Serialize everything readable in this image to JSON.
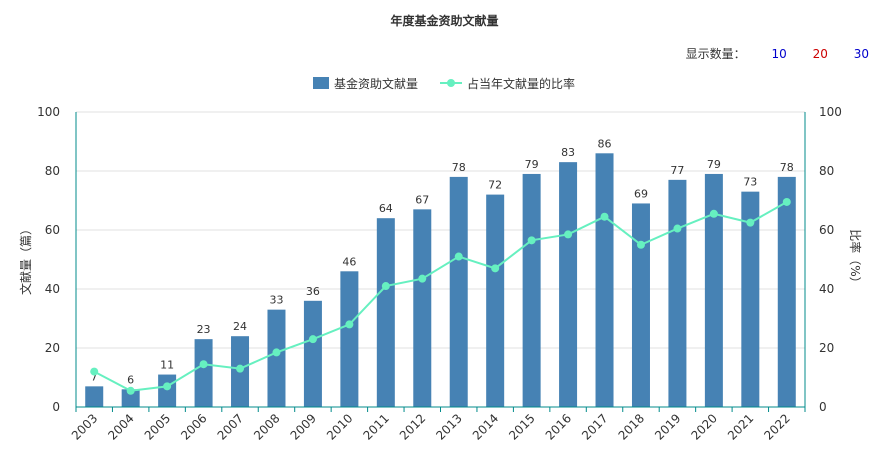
{
  "title": "年度基金资助文献量",
  "count_selector": {
    "label": "显示数量：",
    "options": [
      {
        "label": "10",
        "color": "#0000cc"
      },
      {
        "label": "20",
        "color": "#cc0000"
      },
      {
        "label": "30",
        "color": "#0000cc"
      }
    ]
  },
  "colors": {
    "bar": "#4682b4",
    "line": "#66f0c0",
    "axis": "#008b8b",
    "grid": "#e0e0e0"
  },
  "chart_data": {
    "type": "bar",
    "categories": [
      "2003",
      "2004",
      "2005",
      "2006",
      "2007",
      "2008",
      "2009",
      "2010",
      "2011",
      "2012",
      "2013",
      "2014",
      "2015",
      "2016",
      "2017",
      "2018",
      "2019",
      "2020",
      "2021",
      "2022"
    ],
    "series": [
      {
        "name": "基金资助文献量",
        "type": "bar",
        "axis": "left",
        "values": [
          7,
          6,
          11,
          23,
          24,
          33,
          36,
          46,
          64,
          67,
          78,
          72,
          79,
          83,
          86,
          69,
          77,
          79,
          73,
          78
        ]
      },
      {
        "name": "占当年文献量的比率",
        "type": "line",
        "axis": "right",
        "values": [
          12,
          5.5,
          7,
          14.5,
          13,
          18.5,
          23,
          28,
          41,
          43.5,
          51,
          47,
          56.5,
          58.5,
          64.5,
          55,
          60.5,
          65.5,
          62.5,
          69.5
        ]
      }
    ],
    "ylabel_left": "文献量（篇）",
    "ylabel_right": "比率（%）",
    "ylim_left": [
      0,
      100
    ],
    "ylim_right": [
      0,
      100
    ],
    "yticks": [
      "0",
      "20",
      "40",
      "60",
      "80",
      "100"
    ],
    "grid": true,
    "legend_position": "top-center"
  }
}
